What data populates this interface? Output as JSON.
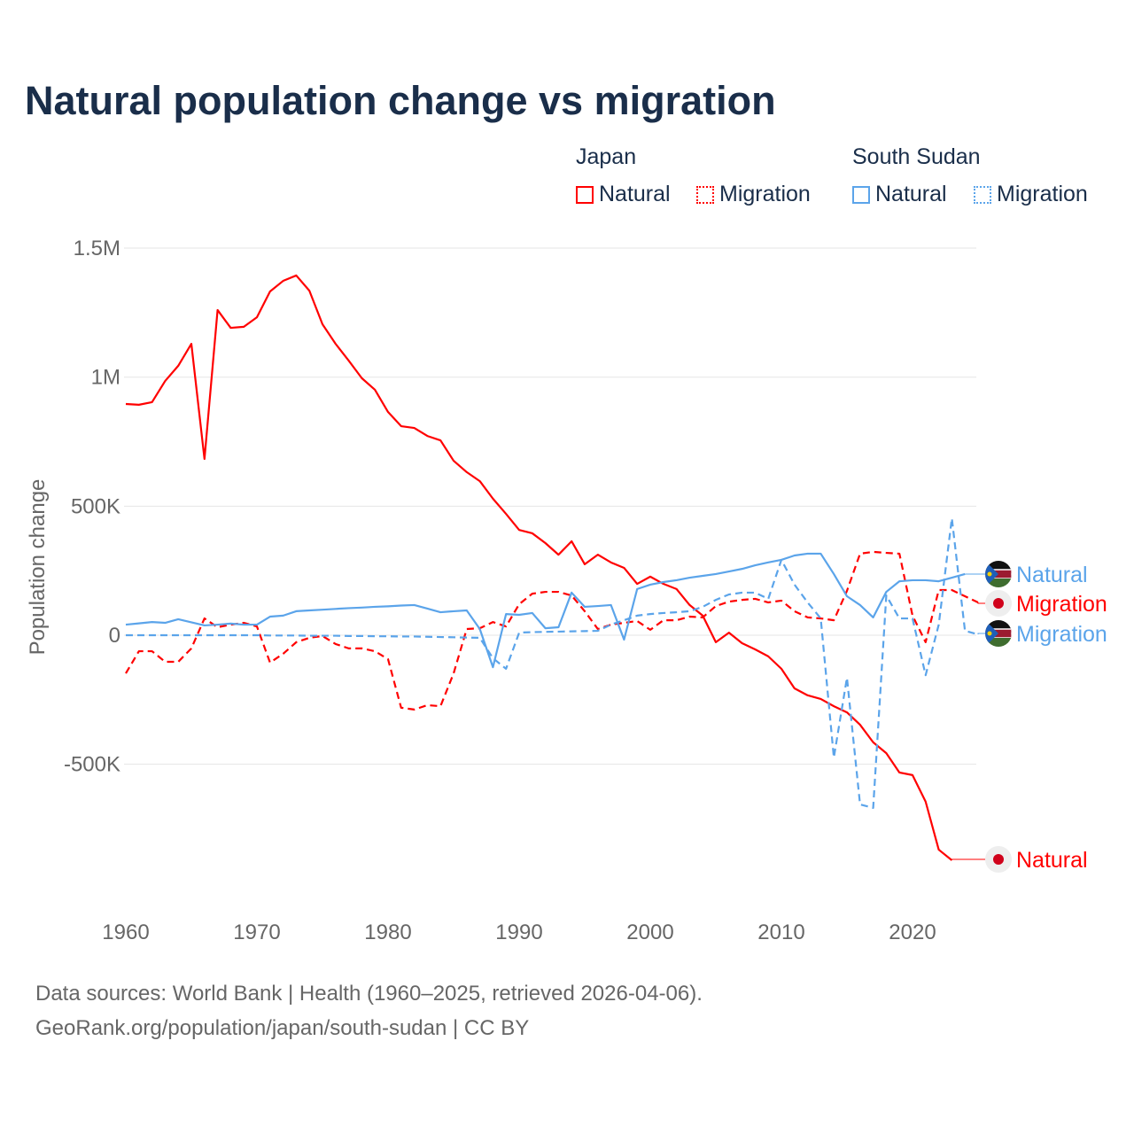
{
  "title": "Natural population change vs migration",
  "legend": {
    "groups": [
      {
        "name": "Japan",
        "items": [
          "Natural",
          "Migration"
        ],
        "color": "#ff0000"
      },
      {
        "name": "South Sudan",
        "items": [
          "Natural",
          "Migration"
        ],
        "color": "#5ba4ea"
      }
    ]
  },
  "sources": [
    "Data sources: World Bank | Health (1960–2025, retrieved 2026-04-06).",
    "GeoRank.org/population/japan/south-sudan | CC BY"
  ],
  "chart_data": {
    "type": "line",
    "title": "Natural population change vs migration",
    "xlabel": "",
    "ylabel": "Population change",
    "xlim": [
      1960,
      2025
    ],
    "ylim": [
      -900000,
      1500000
    ],
    "xticks": [
      1960,
      1970,
      1980,
      1990,
      2000,
      2010,
      2020
    ],
    "xtick_labels": [
      "1960",
      "1970",
      "1980",
      "1990",
      "2000",
      "2010",
      "2020"
    ],
    "yticks": [
      -500000,
      0,
      500000,
      1000000,
      1500000
    ],
    "ytick_labels": [
      "-500K",
      "0",
      "500K",
      "1M",
      "1.5M"
    ],
    "grid": true,
    "legend_position": "top-right",
    "series": [
      {
        "name": "Japan Natural",
        "label": "Natural",
        "color": "#ff0000",
        "dash": false,
        "flag": "japan",
        "x_start": 1960,
        "values": [
          896,
          893,
          903,
          985,
          1044,
          1129,
          683,
          1260,
          1191,
          1195,
          1232,
          1332,
          1373,
          1394,
          1335,
          1205,
          1129,
          1064,
          996,
          951,
          865,
          810,
          803,
          772,
          755,
          676,
          632,
          597,
          529,
          470,
          408,
          395,
          357,
          312,
          364,
          275,
          312,
          282,
          261,
          199,
          227,
          199,
          179,
          117,
          76,
          -27,
          10,
          -31,
          -55,
          -82,
          -130,
          -206,
          -233,
          -247,
          -275,
          -299,
          -347,
          -415,
          -457,
          -532,
          -542,
          -645,
          -831,
          -872
        ],
        "unit": "thousands"
      },
      {
        "name": "Japan Migration",
        "label": "Migration",
        "color": "#ff0000",
        "dash": true,
        "flag": "japan",
        "x_start": 1960,
        "values": [
          -148,
          -62,
          -62,
          -103,
          -103,
          -51,
          65,
          31,
          41,
          48,
          34,
          -106,
          -72,
          -27,
          -10,
          -3,
          -34,
          -51,
          -51,
          -62,
          -93,
          -281,
          -288,
          -271,
          -275,
          -148,
          24,
          27,
          51,
          34,
          120,
          161,
          168,
          168,
          154,
          93,
          24,
          41,
          48,
          55,
          21,
          58,
          58,
          72,
          69,
          113,
          130,
          137,
          141,
          127,
          134,
          93,
          69,
          65,
          58,
          172,
          316,
          323,
          319,
          316,
          76,
          -27,
          175,
          175,
          151,
          127
        ],
        "unit": "thousands"
      },
      {
        "name": "South Sudan Natural",
        "label": "Natural",
        "color": "#5ba4ea",
        "dash": false,
        "flag": "south-sudan",
        "x_start": 1960,
        "values": [
          41,
          46,
          51,
          48,
          62,
          50,
          38,
          41,
          45,
          41,
          41,
          72,
          76,
          93,
          96,
          99,
          102,
          105,
          107,
          110,
          112,
          115,
          117,
          103,
          89,
          93,
          96,
          24,
          -124,
          82,
          79,
          86,
          27,
          31,
          165,
          110,
          113,
          117,
          -17,
          179,
          196,
          206,
          213,
          223,
          230,
          237,
          247,
          257,
          271,
          282,
          292,
          309,
          316,
          316,
          237,
          151,
          117,
          69,
          168,
          209,
          213,
          213,
          209,
          223,
          237
        ],
        "unit": "thousands"
      },
      {
        "name": "South Sudan Migration",
        "label": "Migration",
        "color": "#5ba4ea",
        "dash": true,
        "flag": "south-sudan",
        "x_start": 1960,
        "values": [
          0,
          0,
          0,
          0,
          0,
          0,
          0,
          0,
          0,
          0,
          0,
          -1,
          -1,
          -1,
          -2,
          -2,
          -2,
          -3,
          -3,
          -4,
          -4,
          -5,
          -5,
          -6,
          -7,
          -8,
          -9,
          -10,
          -89,
          -130,
          10,
          12,
          13,
          14,
          15,
          16,
          17,
          41,
          58,
          76,
          82,
          86,
          89,
          93,
          110,
          137,
          158,
          165,
          165,
          141,
          292,
          196,
          127,
          65,
          -474,
          -165,
          -656,
          -669,
          154,
          65,
          65,
          -155,
          41,
          453,
          17,
          3
        ],
        "unit": "thousands"
      }
    ]
  }
}
